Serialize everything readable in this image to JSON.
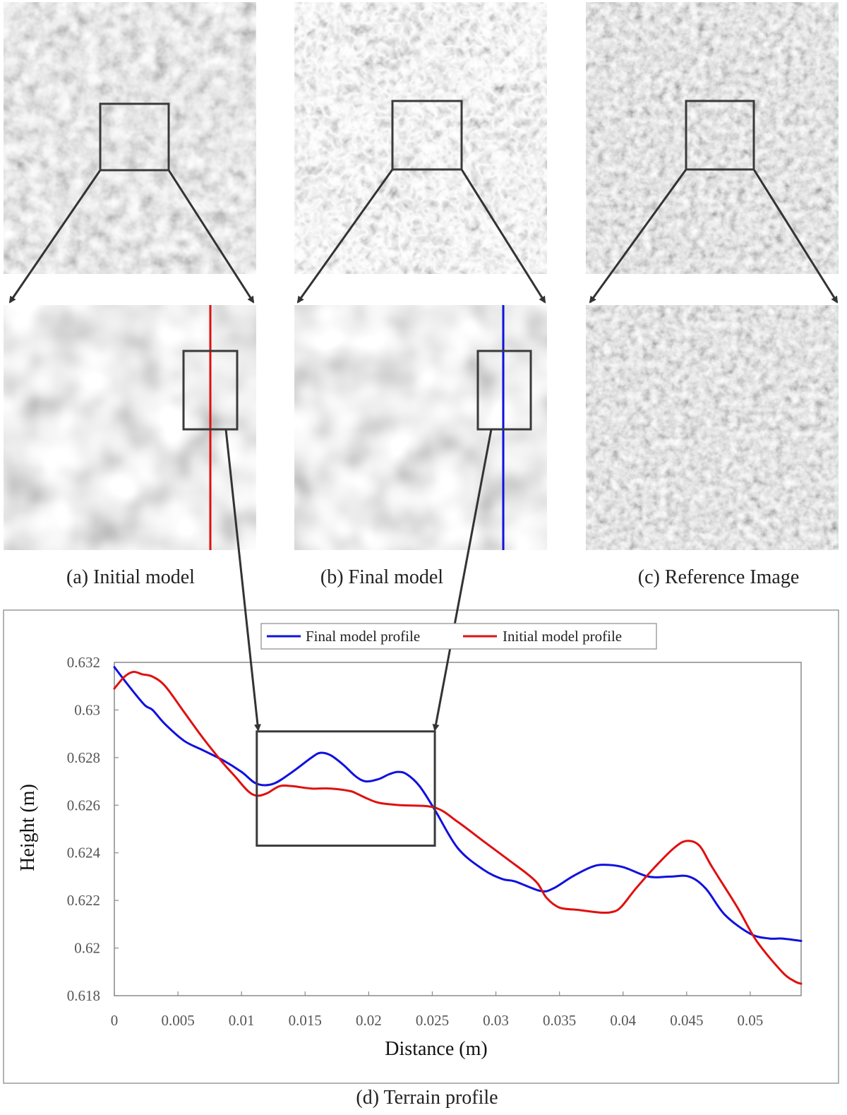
{
  "panels": [
    {
      "caption": "(a) Initial model"
    },
    {
      "caption": "(b) Final model"
    },
    {
      "caption": "(c) Reference Image"
    }
  ],
  "chart_caption": "(d) Terrain profile",
  "colors": {
    "final": "#1010e0",
    "initial": "#e01010",
    "callout": "#333333"
  },
  "chart_data": {
    "type": "line",
    "title": "",
    "xlabel": "Distance (m)",
    "ylabel": "Height (m)",
    "xlim": [
      0,
      0.054
    ],
    "ylim": [
      0.618,
      0.632
    ],
    "xticks": [
      0,
      0.005,
      0.01,
      0.015,
      0.02,
      0.025,
      0.03,
      0.035,
      0.04,
      0.045,
      0.05
    ],
    "xtick_labels": [
      "0",
      "0.005",
      "0.01",
      "0.015",
      "0.02",
      "0.025",
      "0.03",
      "0.035",
      "0.04",
      "0.045",
      "0.05"
    ],
    "yticks": [
      0.618,
      0.62,
      0.622,
      0.624,
      0.626,
      0.628,
      0.63,
      0.632
    ],
    "ytick_labels": [
      "0.618",
      "0.62",
      "0.622",
      "0.624",
      "0.626",
      "0.628",
      "0.63",
      "0.632"
    ],
    "grid": false,
    "legend": "top-center",
    "highlight_box": {
      "x": [
        0.0112,
        0.0252
      ],
      "y": [
        0.6243,
        0.6291
      ]
    },
    "series": [
      {
        "name": "Final model profile",
        "color": "#1010e0",
        "x": [
          0,
          0.0013,
          0.0024,
          0.003,
          0.004,
          0.0055,
          0.007,
          0.0085,
          0.01,
          0.0112,
          0.0125,
          0.014,
          0.0155,
          0.0162,
          0.017,
          0.018,
          0.019,
          0.0198,
          0.0208,
          0.0216,
          0.0223,
          0.023,
          0.024,
          0.0252,
          0.027,
          0.029,
          0.0305,
          0.0315,
          0.0335,
          0.0345,
          0.036,
          0.0375,
          0.0385,
          0.04,
          0.042,
          0.0437,
          0.0452,
          0.0465,
          0.048,
          0.05,
          0.0515,
          0.0525,
          0.054
        ],
        "y": [
          0.6318,
          0.6309,
          0.6302,
          0.63,
          0.6294,
          0.6287,
          0.6283,
          0.6279,
          0.6274,
          0.6269,
          0.6269,
          0.6274,
          0.628,
          0.6282,
          0.6281,
          0.6277,
          0.6272,
          0.627,
          0.6271,
          0.6273,
          0.6274,
          0.6273,
          0.6268,
          0.6258,
          0.6242,
          0.6233,
          0.6229,
          0.6228,
          0.6224,
          0.6225,
          0.623,
          0.6234,
          0.6235,
          0.6234,
          0.623,
          0.623,
          0.623,
          0.6225,
          0.6214,
          0.6206,
          0.6204,
          0.6204,
          0.6203
        ]
      },
      {
        "name": "Initial model profile",
        "color": "#e01010",
        "x": [
          0,
          0.0008,
          0.0015,
          0.0022,
          0.003,
          0.004,
          0.0055,
          0.007,
          0.0085,
          0.0095,
          0.0105,
          0.0112,
          0.012,
          0.013,
          0.014,
          0.0155,
          0.017,
          0.0185,
          0.019,
          0.0198,
          0.0208,
          0.0225,
          0.0252,
          0.027,
          0.029,
          0.031,
          0.0325,
          0.0333,
          0.034,
          0.035,
          0.0365,
          0.038,
          0.039,
          0.0398,
          0.041,
          0.0425,
          0.044,
          0.045,
          0.046,
          0.047,
          0.049,
          0.0505,
          0.0525,
          0.0535,
          0.054
        ],
        "y": [
          0.6309,
          0.6314,
          0.6316,
          0.6315,
          0.6314,
          0.631,
          0.6299,
          0.6288,
          0.6278,
          0.6272,
          0.6266,
          0.6264,
          0.6265,
          0.6268,
          0.6268,
          0.6267,
          0.6267,
          0.6266,
          0.6265,
          0.6263,
          0.6261,
          0.626,
          0.6259,
          0.6253,
          0.6245,
          0.6237,
          0.6231,
          0.6227,
          0.6221,
          0.6217,
          0.6216,
          0.6215,
          0.6215,
          0.6217,
          0.6225,
          0.6234,
          0.6242,
          0.6245,
          0.6243,
          0.6234,
          0.6217,
          0.6203,
          0.619,
          0.6186,
          0.6185
        ]
      }
    ]
  }
}
